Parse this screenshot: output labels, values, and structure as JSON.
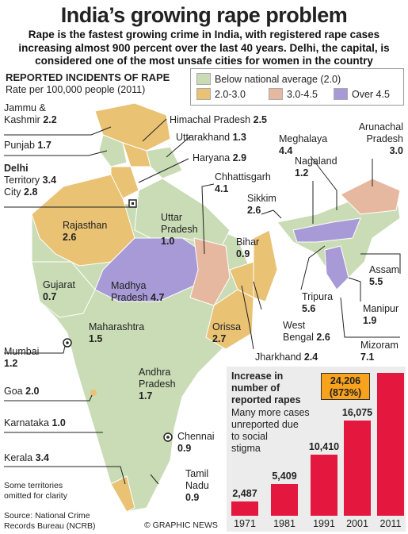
{
  "title": "India’s growing rape problem",
  "subtitle": "Rape is the fastest growing crime in India, with registered rape cases increasing almost 900 percent over the last 40 years. Delhi, the capital, is considered one of the most unsafe cities for women in the country",
  "map": {
    "heading": "REPORTED INCIDENTS OF RAPE",
    "subheading": "Rate per 100,000 people (2011)",
    "legend": [
      {
        "label": "Below national average (2.0)",
        "color": "#c9dcb5"
      },
      {
        "label": "2.0-3.0",
        "color": "#e9c274"
      },
      {
        "label": "3.0-4.5",
        "color": "#e7b8a0"
      },
      {
        "label": "Over 4.5",
        "color": "#a79ad6"
      }
    ],
    "labels": {
      "jk_name": "Jammu &",
      "jk_name2": "Kashmir",
      "jk_val": "2.2",
      "punjab_name": "Punjab",
      "punjab_val": "1.7",
      "delhi_name": "Delhi",
      "delhi_line2": "Territory",
      "delhi_val1": "3.4",
      "delhi_line3": "City",
      "delhi_val2": "2.8",
      "hp_name": "Himachal Pradesh",
      "hp_val": "2.5",
      "ut_name": "Uttarakhand",
      "ut_val": "1.3",
      "har_name": "Haryana",
      "har_val": "2.9",
      "chh_name": "Chhattisgarh",
      "chh_val": "4.1",
      "raj_name": "Rajasthan",
      "raj_val": "2.6",
      "up_name1": "Uttar",
      "up_name2": "Pradesh",
      "up_val": "1.0",
      "sik_name": "Sikkim",
      "sik_val": "2.6",
      "bih_name": "Bihar",
      "bih_val": "0.9",
      "meg_name": "Meghalaya",
      "meg_val": "4.4",
      "naga_name": "Nagaland",
      "naga_val": "1.2",
      "aru_name1": "Arunachal",
      "aru_name2": "Pradesh",
      "aru_val": "3.0",
      "assam_name": "Assam",
      "assam_val": "5.5",
      "guj_name": "Gujarat",
      "guj_val": "0.7",
      "mp_name1": "Madhya",
      "mp_name2": "Pradesh",
      "mp_val": "4.7",
      "tri_name": "Tripura",
      "tri_val": "5.6",
      "man_name": "Manipur",
      "man_val": "1.9",
      "mah_name": "Maharashtra",
      "mah_val": "1.5",
      "ori_name": "Orissa",
      "ori_val": "2.7",
      "wb_name1": "West",
      "wb_name2": "Bengal",
      "wb_val": "2.6",
      "jh_name": "Jharkhand",
      "jh_val": "2.4",
      "miz_name": "Mizoram",
      "miz_val": "7.1",
      "mum_name": "Mumbai",
      "mum_val": "1.2",
      "goa_name": "Goa",
      "goa_val": "2.0",
      "kar_name": "Karnataka",
      "kar_val": "1.0",
      "ker_name": "Kerala",
      "ker_val": "3.4",
      "ap_name1": "Andhra",
      "ap_name2": "Pradesh",
      "ap_val": "1.7",
      "che_name": "Chennai",
      "che_val": "0.9",
      "tn_name1": "Tamil",
      "tn_name2": "Nadu",
      "tn_val": "0.9"
    },
    "omitted_note1": "Some territories",
    "omitted_note2": "omitted for clarity"
  },
  "source_line1": "Source: National Crime",
  "source_line2": "Records Bureau (NCRB)",
  "credit": "© GRAPHIC NEWS",
  "chart_data": {
    "type": "bar",
    "title": "Increase in number of reported rapes",
    "title_lines": [
      "Increase in",
      "number of",
      "reported rapes"
    ],
    "subtitle_lines": [
      "Many more cases",
      "unreported due",
      "to social",
      "stigma"
    ],
    "categories": [
      "1971",
      "1981",
      "1991",
      "2001",
      "2011"
    ],
    "values": [
      2487,
      5409,
      10410,
      16075,
      24206
    ],
    "value_labels": [
      "2,487",
      "5,409",
      "10,410",
      "16,075",
      "24,206"
    ],
    "callout": [
      "24,206",
      "(873%)"
    ],
    "bar_color": "#e4173e",
    "ylim": [
      0,
      24206
    ]
  }
}
